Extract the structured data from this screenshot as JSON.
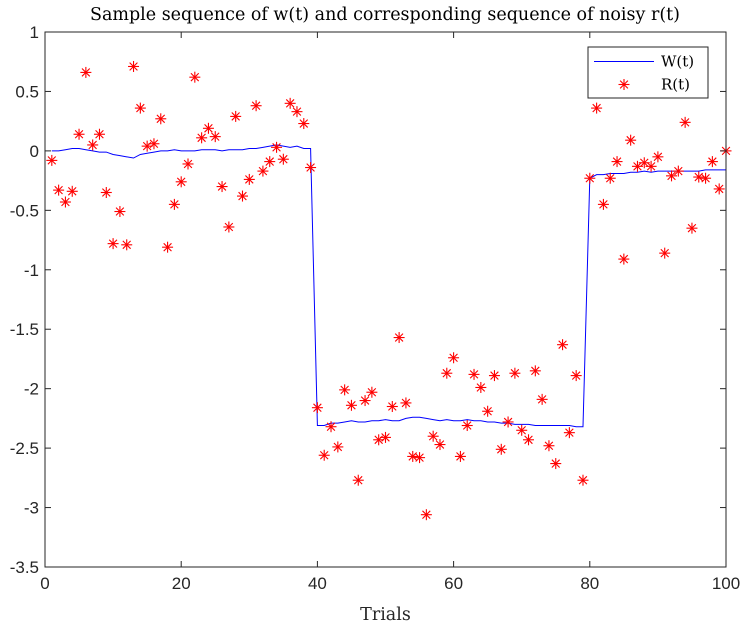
{
  "chart_data": {
    "type": "line",
    "title": "Sample sequence of w(t) and corresponding sequence of noisy r(t)",
    "xlabel": "Trials",
    "ylabel": "",
    "xlim": [
      0,
      100
    ],
    "ylim": [
      -3.5,
      1
    ],
    "xticks": [
      0,
      20,
      40,
      60,
      80,
      100
    ],
    "xtick_labels": [
      "0",
      "20",
      "40",
      "60",
      "80",
      "100"
    ],
    "yticks": [
      1,
      0.5,
      0,
      -0.5,
      -1,
      -1.5,
      -2,
      -2.5,
      -3,
      -3.5
    ],
    "ytick_labels": [
      "1",
      "0.5",
      "0",
      "-0.5",
      "-1",
      "-1.5",
      "-2",
      "-2.5",
      "-3",
      "-3.5"
    ],
    "grid": false,
    "legend": {
      "position": "top-right",
      "entries": [
        "W(t)",
        "R(t)"
      ]
    },
    "series": [
      {
        "name": "W(t)",
        "style": "line",
        "color": "#0000ff",
        "x": [
          1,
          2,
          3,
          4,
          5,
          6,
          7,
          8,
          9,
          10,
          11,
          12,
          13,
          14,
          15,
          16,
          17,
          18,
          19,
          20,
          21,
          22,
          23,
          24,
          25,
          26,
          27,
          28,
          29,
          30,
          31,
          32,
          33,
          34,
          35,
          36,
          37,
          38,
          39,
          40,
          41,
          42,
          43,
          44,
          45,
          46,
          47,
          48,
          49,
          50,
          51,
          52,
          53,
          54,
          55,
          56,
          57,
          58,
          59,
          60,
          61,
          62,
          63,
          64,
          65,
          66,
          67,
          68,
          69,
          70,
          71,
          72,
          73,
          74,
          75,
          76,
          77,
          78,
          79,
          80,
          81,
          82,
          83,
          84,
          85,
          86,
          87,
          88,
          89,
          90,
          91,
          92,
          93,
          94,
          95,
          96,
          97,
          98,
          99,
          100
        ],
        "y": [
          0.0,
          0.0,
          0.01,
          0.02,
          0.02,
          0.01,
          0.0,
          -0.01,
          -0.01,
          -0.03,
          -0.04,
          -0.05,
          -0.06,
          -0.03,
          -0.02,
          -0.01,
          0.0,
          0.0,
          0.01,
          0.0,
          0.0,
          0.0,
          0.01,
          0.01,
          0.01,
          0.0,
          0.01,
          0.01,
          0.01,
          0.02,
          0.02,
          0.03,
          0.04,
          0.05,
          0.04,
          0.03,
          0.04,
          0.02,
          0.02,
          -2.31,
          -2.31,
          -2.29,
          -2.29,
          -2.28,
          -2.27,
          -2.28,
          -2.28,
          -2.27,
          -2.27,
          -2.26,
          -2.27,
          -2.27,
          -2.25,
          -2.24,
          -2.24,
          -2.25,
          -2.26,
          -2.27,
          -2.26,
          -2.27,
          -2.27,
          -2.26,
          -2.27,
          -2.27,
          -2.28,
          -2.28,
          -2.29,
          -2.29,
          -2.3,
          -2.3,
          -2.3,
          -2.31,
          -2.31,
          -2.31,
          -2.31,
          -2.31,
          -2.31,
          -2.32,
          -2.32,
          -0.23,
          -0.2,
          -0.2,
          -0.19,
          -0.19,
          -0.19,
          -0.18,
          -0.18,
          -0.17,
          -0.18,
          -0.17,
          -0.17,
          -0.17,
          -0.17,
          -0.17,
          -0.17,
          -0.17,
          -0.16,
          -0.16,
          -0.16,
          -0.16
        ]
      },
      {
        "name": "R(t)",
        "style": "markers",
        "marker": "asterisk",
        "color": "#ff0000",
        "x": [
          1,
          2,
          3,
          4,
          5,
          6,
          7,
          8,
          9,
          10,
          11,
          12,
          13,
          14,
          15,
          16,
          17,
          18,
          19,
          20,
          21,
          22,
          23,
          24,
          25,
          26,
          27,
          28,
          29,
          30,
          31,
          32,
          33,
          34,
          35,
          36,
          37,
          38,
          39,
          40,
          41,
          42,
          43,
          44,
          45,
          46,
          47,
          48,
          49,
          50,
          51,
          52,
          53,
          54,
          55,
          56,
          57,
          58,
          59,
          60,
          61,
          62,
          63,
          64,
          65,
          66,
          67,
          68,
          69,
          70,
          71,
          72,
          73,
          74,
          75,
          76,
          77,
          78,
          79,
          80,
          81,
          82,
          83,
          84,
          85,
          86,
          87,
          88,
          89,
          90,
          91,
          92,
          93,
          94,
          95,
          96,
          97,
          98,
          99,
          100
        ],
        "y": [
          -0.08,
          -0.33,
          -0.43,
          -0.34,
          0.14,
          0.66,
          0.05,
          0.14,
          -0.35,
          -0.78,
          -0.51,
          -0.79,
          0.71,
          0.36,
          0.04,
          0.06,
          0.27,
          -0.81,
          -0.45,
          -0.26,
          -0.11,
          0.62,
          0.11,
          0.19,
          0.12,
          -0.3,
          -0.64,
          0.29,
          -0.38,
          -0.24,
          0.38,
          -0.17,
          -0.09,
          0.03,
          -0.07,
          0.4,
          0.33,
          0.23,
          -0.14,
          -2.16,
          -2.56,
          -2.32,
          -2.49,
          -2.01,
          -2.14,
          -2.77,
          -2.1,
          -2.03,
          -2.43,
          -2.41,
          -2.15,
          -1.57,
          -2.12,
          -2.57,
          -2.58,
          -3.06,
          -2.4,
          -2.47,
          -1.87,
          -1.74,
          -2.57,
          -2.31,
          -1.88,
          -1.99,
          -2.19,
          -1.89,
          -2.51,
          -2.28,
          -1.87,
          -2.35,
          -2.43,
          -1.85,
          -2.09,
          -2.48,
          -2.63,
          -1.63,
          -2.37,
          -1.89,
          -2.77,
          -0.23,
          0.36,
          -0.45,
          -0.23,
          -0.09,
          -0.91,
          0.09,
          -0.13,
          -0.1,
          -0.13,
          -0.05,
          -0.86,
          -0.21,
          -0.17,
          0.24,
          -0.65,
          -0.22,
          -0.23,
          -0.09,
          -0.32,
          0.0
        ]
      }
    ]
  }
}
